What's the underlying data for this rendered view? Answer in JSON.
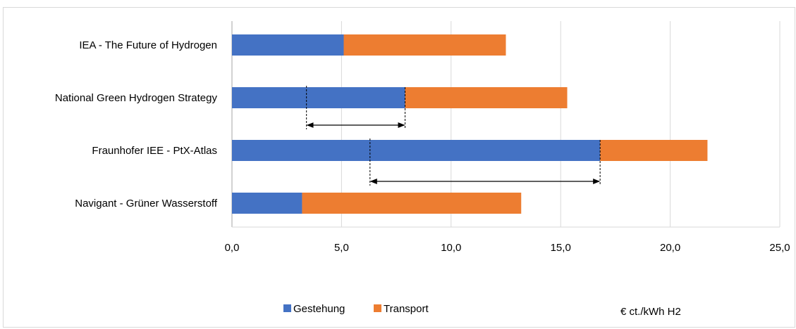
{
  "chart_data": {
    "type": "bar",
    "orientation": "horizontal",
    "stacked": true,
    "categories": [
      "IEA - The Future of Hydrogen",
      "National Green Hydrogen Strategy",
      "Fraunhofer IEE - PtX-Atlas",
      "Navigant - Grüner Wasserstoff"
    ],
    "series": [
      {
        "name": "Gestehung",
        "color": "#4472C4",
        "values": [
          5.1,
          7.9,
          16.8,
          3.2
        ]
      },
      {
        "name": "Transport",
        "color": "#ED7D31",
        "values": [
          7.4,
          7.4,
          4.9,
          10.0
        ]
      }
    ],
    "xlim": [
      0,
      25
    ],
    "x_ticks": [
      0,
      5,
      10,
      15,
      20,
      25
    ],
    "x_tick_labels": [
      "0,0",
      "5,0",
      "10,0",
      "15,0",
      "20,0",
      "25,0"
    ],
    "unit_label": "€ ct./kWh H2",
    "grid": "vertical",
    "legend_position": "bottom",
    "annotations": [
      {
        "category": "National Green Hydrogen Strategy",
        "type": "double-arrow-range",
        "from": 3.4,
        "to": 7.9
      },
      {
        "category": "Fraunhofer IEE - PtX-Atlas",
        "type": "double-arrow-range",
        "from": 6.3,
        "to": 16.8
      }
    ]
  }
}
